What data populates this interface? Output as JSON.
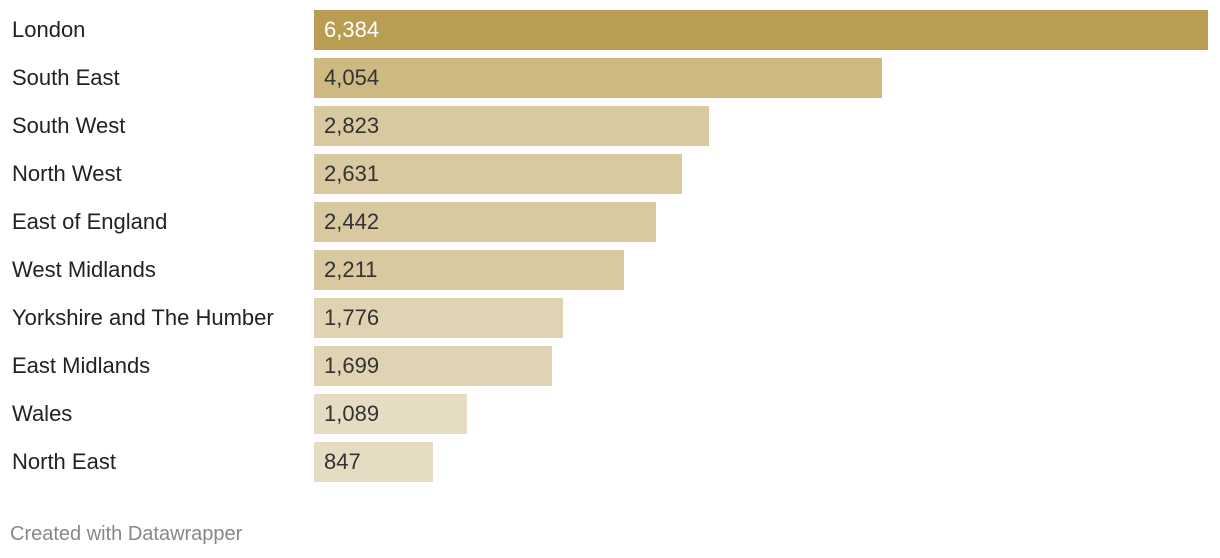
{
  "chart_data": {
    "type": "bar",
    "orientation": "horizontal",
    "categories": [
      "London",
      "South East",
      "South West",
      "North West",
      "East of England",
      "West Midlands",
      "Yorkshire and The Humber",
      "East Midlands",
      "Wales",
      "North East"
    ],
    "values": [
      6384,
      4054,
      2823,
      2631,
      2442,
      2211,
      1776,
      1699,
      1089,
      847
    ],
    "value_labels": [
      "6,384",
      "4,054",
      "2,823",
      "2,631",
      "2,442",
      "2,211",
      "1,776",
      "1,699",
      "1,089",
      "847"
    ],
    "colors": [
      "#b89d52",
      "#ceb983",
      "#d9c9a0",
      "#d9c9a0",
      "#d9c9a0",
      "#d9c9a0",
      "#e0d3b3",
      "#e0d3b3",
      "#e6dcc4",
      "#e6dcc4"
    ],
    "value_text_colors": [
      "#ffffff",
      "#333333",
      "#333333",
      "#333333",
      "#333333",
      "#333333",
      "#333333",
      "#333333",
      "#333333",
      "#333333"
    ],
    "xlim": [
      0,
      6384
    ],
    "title": "",
    "xlabel": "",
    "ylabel": "",
    "grid": false
  },
  "footer": {
    "credit": "Created with Datawrapper"
  }
}
